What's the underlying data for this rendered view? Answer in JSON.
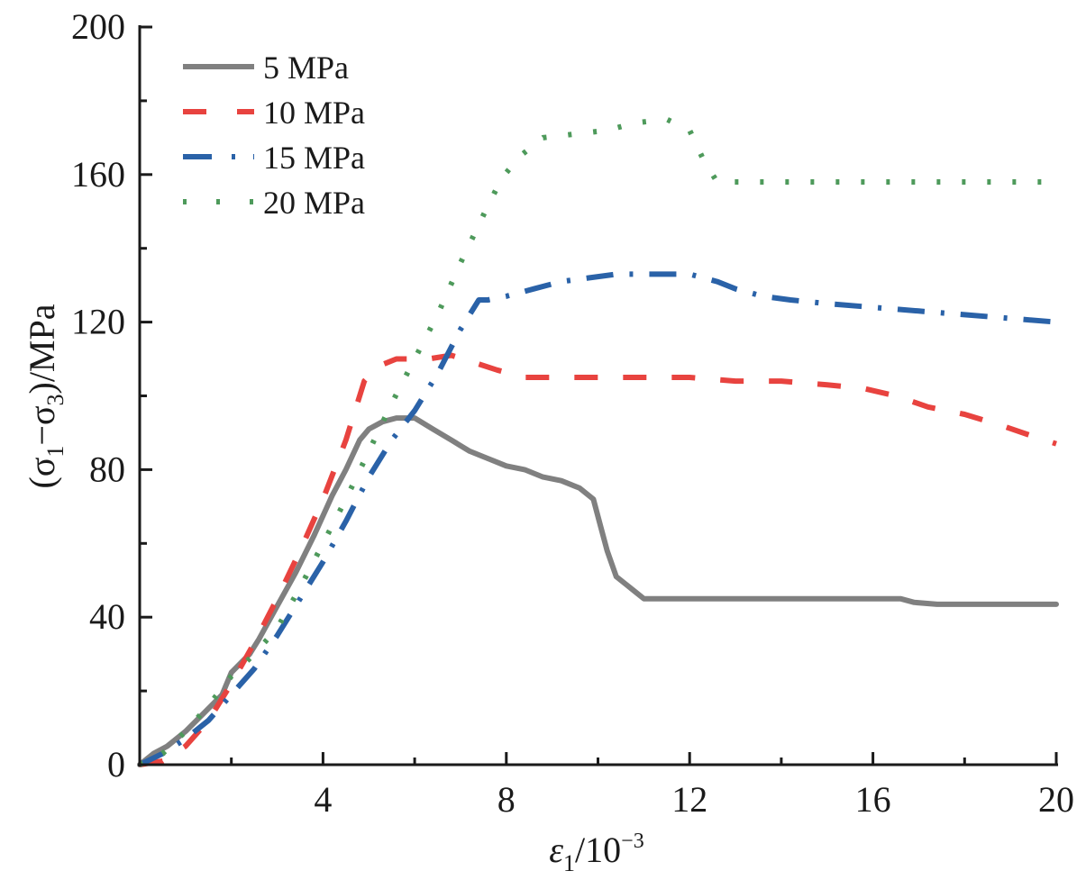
{
  "chart_data": {
    "type": "line",
    "title": "",
    "xlabel": "ε1/10^-3",
    "xlabel_parts": {
      "main": "ε",
      "sub": "1",
      "rest": "/10",
      "sup": "−3"
    },
    "ylabel": "(σ1−σ3)/MPa",
    "ylabel_parts": {
      "open": "(σ",
      "sub1": "1",
      "mid": "−σ",
      "sub3": "3",
      "close": ")/MPa"
    },
    "xlim": [
      0,
      20
    ],
    "ylim": [
      0,
      200
    ],
    "xticks": [
      4,
      8,
      12,
      16,
      20
    ],
    "xtick_labels": [
      "4",
      "8",
      "12",
      "16",
      "20"
    ],
    "xminor": [
      2,
      6,
      10,
      14,
      18
    ],
    "yticks": [
      0,
      40,
      80,
      120,
      160,
      200
    ],
    "ytick_labels": [
      "0",
      "40",
      "80",
      "120",
      "160",
      "200"
    ],
    "yminor": [
      20,
      60,
      100,
      140,
      180
    ],
    "grid": false,
    "legend_position": "top-left",
    "series": [
      {
        "name": "5 MPa",
        "color": "#808080",
        "style": "solid",
        "x": [
          0,
          0.3,
          0.6,
          1.0,
          1.4,
          1.8,
          2.0,
          2.4,
          2.6,
          3.0,
          3.4,
          3.8,
          4.2,
          4.5,
          4.8,
          5.0,
          5.3,
          5.6,
          6.0,
          6.4,
          6.8,
          7.2,
          7.6,
          8.0,
          8.4,
          8.8,
          9.2,
          9.6,
          9.9,
          10.05,
          10.2,
          10.4,
          10.6,
          10.8,
          11.0,
          12.0,
          13.0,
          14.0,
          15.0,
          16.0,
          16.6,
          16.9,
          17.4,
          18.0,
          19.0,
          20.0
        ],
        "y": [
          0,
          3,
          5,
          9,
          14,
          19,
          25,
          30,
          34,
          43,
          52,
          62,
          73,
          80,
          88,
          91,
          93,
          94,
          94,
          91,
          88,
          85,
          83,
          81,
          80,
          78,
          77,
          75,
          72,
          65,
          58,
          51,
          49,
          47,
          45,
          45,
          45,
          45,
          45,
          45,
          45,
          44,
          43.5,
          43.5,
          43.5,
          43.5
        ]
      },
      {
        "name": "10 MPa",
        "color": "#e8433f",
        "style": "dashed",
        "x": [
          0,
          0.5,
          1.0,
          1.5,
          2.0,
          2.5,
          3.0,
          3.5,
          4.0,
          4.5,
          4.9,
          5.2,
          5.6,
          5.9,
          6.3,
          6.8,
          7.3,
          7.8,
          8.4,
          9.0,
          10.0,
          11.0,
          12.0,
          13.0,
          14.0,
          15.0,
          15.8,
          16.5,
          17.2,
          18.0,
          18.8,
          19.5,
          20.0
        ],
        "y": [
          0,
          1,
          5,
          12,
          22,
          33,
          45,
          58,
          72,
          88,
          104,
          108,
          110,
          110,
          110,
          111,
          109,
          107,
          105,
          105,
          105,
          105,
          105,
          104,
          104,
          103,
          102,
          100,
          97,
          95,
          92,
          89,
          87
        ]
      },
      {
        "name": "15 MPa",
        "color": "#2a62a8",
        "style": "dashdot",
        "x": [
          0,
          0.5,
          1.0,
          1.5,
          2.0,
          2.5,
          3.0,
          3.5,
          4.0,
          4.5,
          5.0,
          5.5,
          6.0,
          6.5,
          7.0,
          7.4,
          7.6,
          8.0,
          8.6,
          9.2,
          9.8,
          10.4,
          11.0,
          12.0,
          12.6,
          13.0,
          13.6,
          14.2,
          15.0,
          16.0,
          17.0,
          18.0,
          19.0,
          20.0
        ],
        "y": [
          0,
          3,
          7,
          12,
          19,
          26,
          35,
          45,
          55,
          66,
          78,
          88,
          96,
          106,
          118,
          126,
          126,
          127,
          129,
          131,
          132,
          133,
          133,
          133,
          131,
          129,
          127,
          126,
          125,
          124,
          123,
          122,
          121,
          120
        ]
      },
      {
        "name": "20 MPa",
        "color": "#4e9a5b",
        "style": "dotted",
        "x": [
          0,
          0.5,
          1.0,
          1.5,
          2.0,
          2.5,
          3.0,
          3.5,
          4.0,
          4.5,
          5.0,
          5.5,
          6.0,
          6.5,
          7.0,
          7.5,
          7.9,
          8.3,
          8.8,
          9.5,
          10.2,
          10.8,
          11.5,
          12.0,
          12.3,
          12.6,
          13.0,
          14.0,
          15.0,
          16.0,
          17.0,
          18.0,
          19.0,
          20.0
        ],
        "y": [
          0,
          3,
          9,
          16,
          24,
          30,
          37,
          48,
          60,
          72,
          85,
          98,
          110,
          122,
          136,
          149,
          159,
          165,
          170,
          171,
          172,
          174,
          175,
          172,
          164,
          158,
          158,
          158,
          158,
          158,
          158,
          158,
          158,
          158
        ]
      }
    ]
  }
}
